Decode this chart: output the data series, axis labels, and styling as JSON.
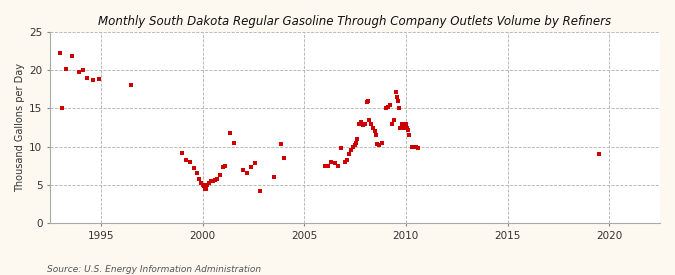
{
  "title": "Monthly South Dakota Regular Gasoline Through Company Outlets Volume by Refiners",
  "ylabel": "Thousand Gallons per Day",
  "source": "Source: U.S. Energy Information Administration",
  "background_color": "#fdf8f0",
  "plot_background_color": "#ffffff",
  "marker_color": "#cc0000",
  "marker_size": 3.5,
  "ylim": [
    0,
    25
  ],
  "yticks": [
    0,
    5,
    10,
    15,
    20,
    25
  ],
  "xlim": [
    1992.5,
    2022.5
  ],
  "xticks": [
    1995,
    2000,
    2005,
    2010,
    2015,
    2020
  ],
  "data_points": [
    [
      1993.0,
      22.3
    ],
    [
      1993.3,
      20.2
    ],
    [
      1993.6,
      21.8
    ],
    [
      1993.9,
      19.7
    ],
    [
      1994.1,
      20.0
    ],
    [
      1994.3,
      19.0
    ],
    [
      1994.6,
      18.7
    ],
    [
      1994.9,
      18.9
    ],
    [
      1996.5,
      18.0
    ],
    [
      1993.1,
      15.0
    ],
    [
      1999.0,
      9.2
    ],
    [
      1999.2,
      8.2
    ],
    [
      1999.4,
      8.0
    ],
    [
      1999.6,
      7.2
    ],
    [
      1999.75,
      6.5
    ],
    [
      1999.85,
      5.8
    ],
    [
      1999.9,
      5.3
    ],
    [
      2000.0,
      5.0
    ],
    [
      2000.05,
      4.8
    ],
    [
      2000.1,
      4.5
    ],
    [
      2000.15,
      4.4
    ],
    [
      2000.2,
      5.0
    ],
    [
      2000.3,
      5.2
    ],
    [
      2000.4,
      5.5
    ],
    [
      2000.5,
      5.5
    ],
    [
      2000.6,
      5.7
    ],
    [
      2000.7,
      5.8
    ],
    [
      2000.85,
      6.3
    ],
    [
      2001.0,
      7.3
    ],
    [
      2001.1,
      7.5
    ],
    [
      2001.35,
      11.8
    ],
    [
      2001.55,
      10.5
    ],
    [
      2002.0,
      7.0
    ],
    [
      2002.2,
      6.5
    ],
    [
      2002.4,
      7.3
    ],
    [
      2002.6,
      7.8
    ],
    [
      2002.85,
      4.2
    ],
    [
      2003.5,
      6.0
    ],
    [
      2003.85,
      10.3
    ],
    [
      2004.0,
      8.5
    ],
    [
      2006.0,
      7.5
    ],
    [
      2006.15,
      7.5
    ],
    [
      2006.3,
      8.0
    ],
    [
      2006.5,
      7.8
    ],
    [
      2006.65,
      7.5
    ],
    [
      2006.8,
      9.8
    ],
    [
      2007.0,
      8.0
    ],
    [
      2007.1,
      8.2
    ],
    [
      2007.2,
      9.0
    ],
    [
      2007.3,
      9.5
    ],
    [
      2007.4,
      10.0
    ],
    [
      2007.5,
      10.2
    ],
    [
      2007.55,
      10.5
    ],
    [
      2007.6,
      11.0
    ],
    [
      2007.7,
      13.0
    ],
    [
      2007.8,
      13.2
    ],
    [
      2007.9,
      12.8
    ],
    [
      2008.0,
      13.0
    ],
    [
      2008.1,
      15.8
    ],
    [
      2008.15,
      16.0
    ],
    [
      2008.2,
      13.5
    ],
    [
      2008.3,
      13.0
    ],
    [
      2008.4,
      12.5
    ],
    [
      2008.5,
      12.0
    ],
    [
      2008.55,
      11.5
    ],
    [
      2008.6,
      10.3
    ],
    [
      2008.7,
      10.2
    ],
    [
      2008.85,
      10.5
    ],
    [
      2009.0,
      15.0
    ],
    [
      2009.1,
      15.2
    ],
    [
      2009.2,
      15.5
    ],
    [
      2009.3,
      13.0
    ],
    [
      2009.4,
      13.5
    ],
    [
      2009.5,
      17.2
    ],
    [
      2009.55,
      16.5
    ],
    [
      2009.6,
      16.0
    ],
    [
      2009.65,
      15.0
    ],
    [
      2009.7,
      12.5
    ],
    [
      2009.8,
      13.0
    ],
    [
      2009.9,
      12.5
    ],
    [
      2010.0,
      13.0
    ],
    [
      2010.05,
      12.5
    ],
    [
      2010.1,
      12.2
    ],
    [
      2010.15,
      11.5
    ],
    [
      2010.3,
      10.0
    ],
    [
      2010.5,
      10.0
    ],
    [
      2010.6,
      9.8
    ],
    [
      2019.5,
      9.0
    ]
  ]
}
